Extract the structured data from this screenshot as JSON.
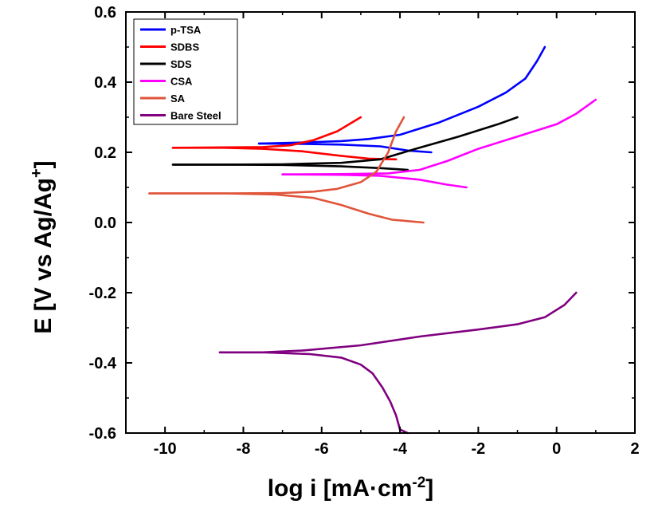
{
  "chart_data": {
    "type": "line",
    "title": "",
    "xlabel": {
      "main": "log i [mA",
      "dot": "·",
      "unit": "cm",
      "sup": "-2",
      "close": "]"
    },
    "ylabel": {
      "main": "E [V vs Ag/Ag",
      "sup": "+",
      "close": "]"
    },
    "xlim": [
      -11,
      2
    ],
    "ylim": [
      -0.6,
      0.6
    ],
    "xticks": [
      -10,
      -8,
      -6,
      -4,
      -2,
      0,
      2
    ],
    "xtick_labels": [
      "-10",
      "-8",
      "-6",
      "-4",
      "-2",
      "0",
      "2"
    ],
    "yticks": [
      -0.6,
      -0.4,
      -0.2,
      0.0,
      0.2,
      0.4,
      0.6
    ],
    "ytick_labels": [
      "-0.6",
      "-0.4",
      "-0.2",
      "0.0",
      "0.2",
      "0.4",
      "0.6"
    ],
    "legend_position": "top-left",
    "series": [
      {
        "name": "p-TSA",
        "color": "#0000ff",
        "anodic": [
          [
            -7.6,
            0.225
          ],
          [
            -6.5,
            0.228
          ],
          [
            -5.5,
            0.232
          ],
          [
            -4.8,
            0.238
          ],
          [
            -4.0,
            0.25
          ],
          [
            -3.0,
            0.285
          ],
          [
            -2.0,
            0.33
          ],
          [
            -1.3,
            0.37
          ],
          [
            -0.8,
            0.41
          ],
          [
            -0.5,
            0.46
          ],
          [
            -0.3,
            0.5
          ]
        ],
        "cathodic": [
          [
            -7.6,
            0.225
          ],
          [
            -6.5,
            0.224
          ],
          [
            -5.5,
            0.222
          ],
          [
            -4.5,
            0.217
          ],
          [
            -3.8,
            0.205
          ],
          [
            -3.2,
            0.2
          ]
        ]
      },
      {
        "name": "SDBS",
        "color": "#ff0000",
        "anodic": [
          [
            -9.8,
            0.213
          ],
          [
            -8.5,
            0.214
          ],
          [
            -7.5,
            0.215
          ],
          [
            -6.8,
            0.22
          ],
          [
            -6.2,
            0.235
          ],
          [
            -5.6,
            0.26
          ],
          [
            -5.0,
            0.3
          ]
        ],
        "cathodic": [
          [
            -9.8,
            0.213
          ],
          [
            -8.5,
            0.213
          ],
          [
            -7.5,
            0.21
          ],
          [
            -6.5,
            0.203
          ],
          [
            -5.5,
            0.19
          ],
          [
            -4.8,
            0.182
          ],
          [
            -4.1,
            0.18
          ]
        ]
      },
      {
        "name": "SDS",
        "color": "#000000",
        "anodic": [
          [
            -9.8,
            0.165
          ],
          [
            -8.5,
            0.165
          ],
          [
            -7.0,
            0.166
          ],
          [
            -5.5,
            0.17
          ],
          [
            -4.5,
            0.18
          ],
          [
            -3.6,
            0.21
          ],
          [
            -2.5,
            0.245
          ],
          [
            -1.5,
            0.28
          ],
          [
            -1.0,
            0.3
          ]
        ],
        "cathodic": [
          [
            -9.8,
            0.165
          ],
          [
            -8.5,
            0.165
          ],
          [
            -7.0,
            0.164
          ],
          [
            -5.5,
            0.16
          ],
          [
            -4.5,
            0.155
          ],
          [
            -3.8,
            0.15
          ]
        ]
      },
      {
        "name": "CSA",
        "color": "#ff00ff",
        "anodic": [
          [
            -7.0,
            0.137
          ],
          [
            -5.5,
            0.138
          ],
          [
            -4.3,
            0.14
          ],
          [
            -3.5,
            0.15
          ],
          [
            -2.8,
            0.175
          ],
          [
            -2.0,
            0.21
          ],
          [
            -1.0,
            0.245
          ],
          [
            0.0,
            0.28
          ],
          [
            0.5,
            0.31
          ],
          [
            1.0,
            0.35
          ]
        ],
        "cathodic": [
          [
            -7.0,
            0.137
          ],
          [
            -5.5,
            0.136
          ],
          [
            -4.5,
            0.133
          ],
          [
            -3.5,
            0.122
          ],
          [
            -2.8,
            0.108
          ],
          [
            -2.3,
            0.1
          ]
        ]
      },
      {
        "name": "SA",
        "color": "#e0553a",
        "anodic": [
          [
            -10.4,
            0.083
          ],
          [
            -8.5,
            0.083
          ],
          [
            -7.0,
            0.084
          ],
          [
            -6.2,
            0.088
          ],
          [
            -5.6,
            0.096
          ],
          [
            -5.0,
            0.115
          ],
          [
            -4.6,
            0.145
          ],
          [
            -4.3,
            0.2
          ],
          [
            -4.1,
            0.26
          ],
          [
            -3.9,
            0.3
          ]
        ],
        "cathodic": [
          [
            -10.4,
            0.083
          ],
          [
            -8.5,
            0.083
          ],
          [
            -7.2,
            0.08
          ],
          [
            -6.2,
            0.07
          ],
          [
            -5.5,
            0.05
          ],
          [
            -4.8,
            0.025
          ],
          [
            -4.2,
            0.008
          ],
          [
            -3.4,
            0.0
          ]
        ]
      },
      {
        "name": "Bare Steel",
        "color": "#800080",
        "anodic": [
          [
            -8.6,
            -0.37
          ],
          [
            -7.5,
            -0.37
          ],
          [
            -6.5,
            -0.365
          ],
          [
            -5.0,
            -0.35
          ],
          [
            -3.5,
            -0.325
          ],
          [
            -2.0,
            -0.305
          ],
          [
            -1.0,
            -0.29
          ],
          [
            -0.3,
            -0.27
          ],
          [
            0.2,
            -0.235
          ],
          [
            0.5,
            -0.2
          ]
        ],
        "cathodic": [
          [
            -8.6,
            -0.37
          ],
          [
            -7.5,
            -0.37
          ],
          [
            -6.3,
            -0.375
          ],
          [
            -5.5,
            -0.385
          ],
          [
            -5.0,
            -0.405
          ],
          [
            -4.7,
            -0.43
          ],
          [
            -4.45,
            -0.47
          ],
          [
            -4.25,
            -0.51
          ],
          [
            -4.1,
            -0.55
          ],
          [
            -4.0,
            -0.59
          ],
          [
            -3.8,
            -0.6
          ]
        ]
      }
    ]
  }
}
